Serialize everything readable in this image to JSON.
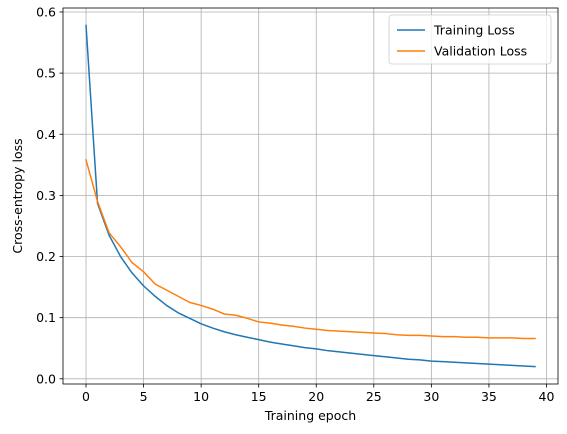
{
  "chart_data": {
    "type": "line",
    "title": "",
    "xlabel": "Training epoch",
    "ylabel": "Cross-entropy loss",
    "xlim": [
      -2,
      41
    ],
    "ylim": [
      -0.0085,
      0.6065
    ],
    "xticks": [
      0,
      5,
      10,
      15,
      20,
      25,
      30,
      35,
      40
    ],
    "yticks": [
      0.0,
      0.1,
      0.2,
      0.3,
      0.4,
      0.5,
      0.6
    ],
    "ytick_labels": [
      "0.0",
      "0.1",
      "0.2",
      "0.3",
      "0.4",
      "0.5",
      "0.6"
    ],
    "grid": true,
    "legend_position": "top-right",
    "x": [
      0,
      1,
      2,
      3,
      4,
      5,
      6,
      7,
      8,
      9,
      10,
      11,
      12,
      13,
      14,
      15,
      16,
      17,
      18,
      19,
      20,
      21,
      22,
      23,
      24,
      25,
      26,
      27,
      28,
      29,
      30,
      31,
      32,
      33,
      34,
      35,
      36,
      37,
      38,
      39
    ],
    "series": [
      {
        "name": "Training Loss",
        "color": "#1f77b4",
        "values": [
          0.578,
          0.287,
          0.235,
          0.2,
          0.173,
          0.152,
          0.135,
          0.12,
          0.108,
          0.099,
          0.09,
          0.083,
          0.077,
          0.072,
          0.068,
          0.064,
          0.06,
          0.057,
          0.054,
          0.051,
          0.049,
          0.046,
          0.044,
          0.042,
          0.04,
          0.038,
          0.036,
          0.034,
          0.032,
          0.031,
          0.029,
          0.028,
          0.027,
          0.026,
          0.025,
          0.024,
          0.023,
          0.022,
          0.021,
          0.02
        ]
      },
      {
        "name": "Validation Loss",
        "color": "#ff7f0e",
        "values": [
          0.358,
          0.29,
          0.239,
          0.216,
          0.19,
          0.175,
          0.155,
          0.145,
          0.135,
          0.125,
          0.12,
          0.114,
          0.106,
          0.104,
          0.099,
          0.093,
          0.091,
          0.088,
          0.086,
          0.083,
          0.081,
          0.079,
          0.078,
          0.077,
          0.076,
          0.075,
          0.074,
          0.072,
          0.071,
          0.071,
          0.07,
          0.069,
          0.069,
          0.068,
          0.068,
          0.067,
          0.067,
          0.067,
          0.066,
          0.066
        ]
      }
    ]
  }
}
